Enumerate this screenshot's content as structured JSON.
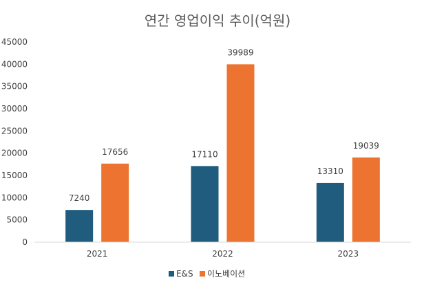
{
  "chart_data": {
    "type": "bar",
    "title": "연간 영업이익 추이(억원)",
    "xlabel": "",
    "ylabel": "",
    "categories": [
      "2021",
      "2022",
      "2023"
    ],
    "series": [
      {
        "name": "E&S",
        "values": [
          7240,
          17110,
          13310
        ]
      },
      {
        "name": "이노베이션",
        "values": [
          17656,
          39989,
          19039
        ]
      }
    ],
    "ylim": [
      0,
      45000
    ],
    "yticks": [
      0,
      5000,
      10000,
      15000,
      20000,
      25000,
      30000,
      35000,
      40000,
      45000
    ],
    "grid": false,
    "legend_position": "bottom",
    "colors": {
      "E&S": "#1f5c7e",
      "이노베이션": "#ec7430"
    }
  }
}
